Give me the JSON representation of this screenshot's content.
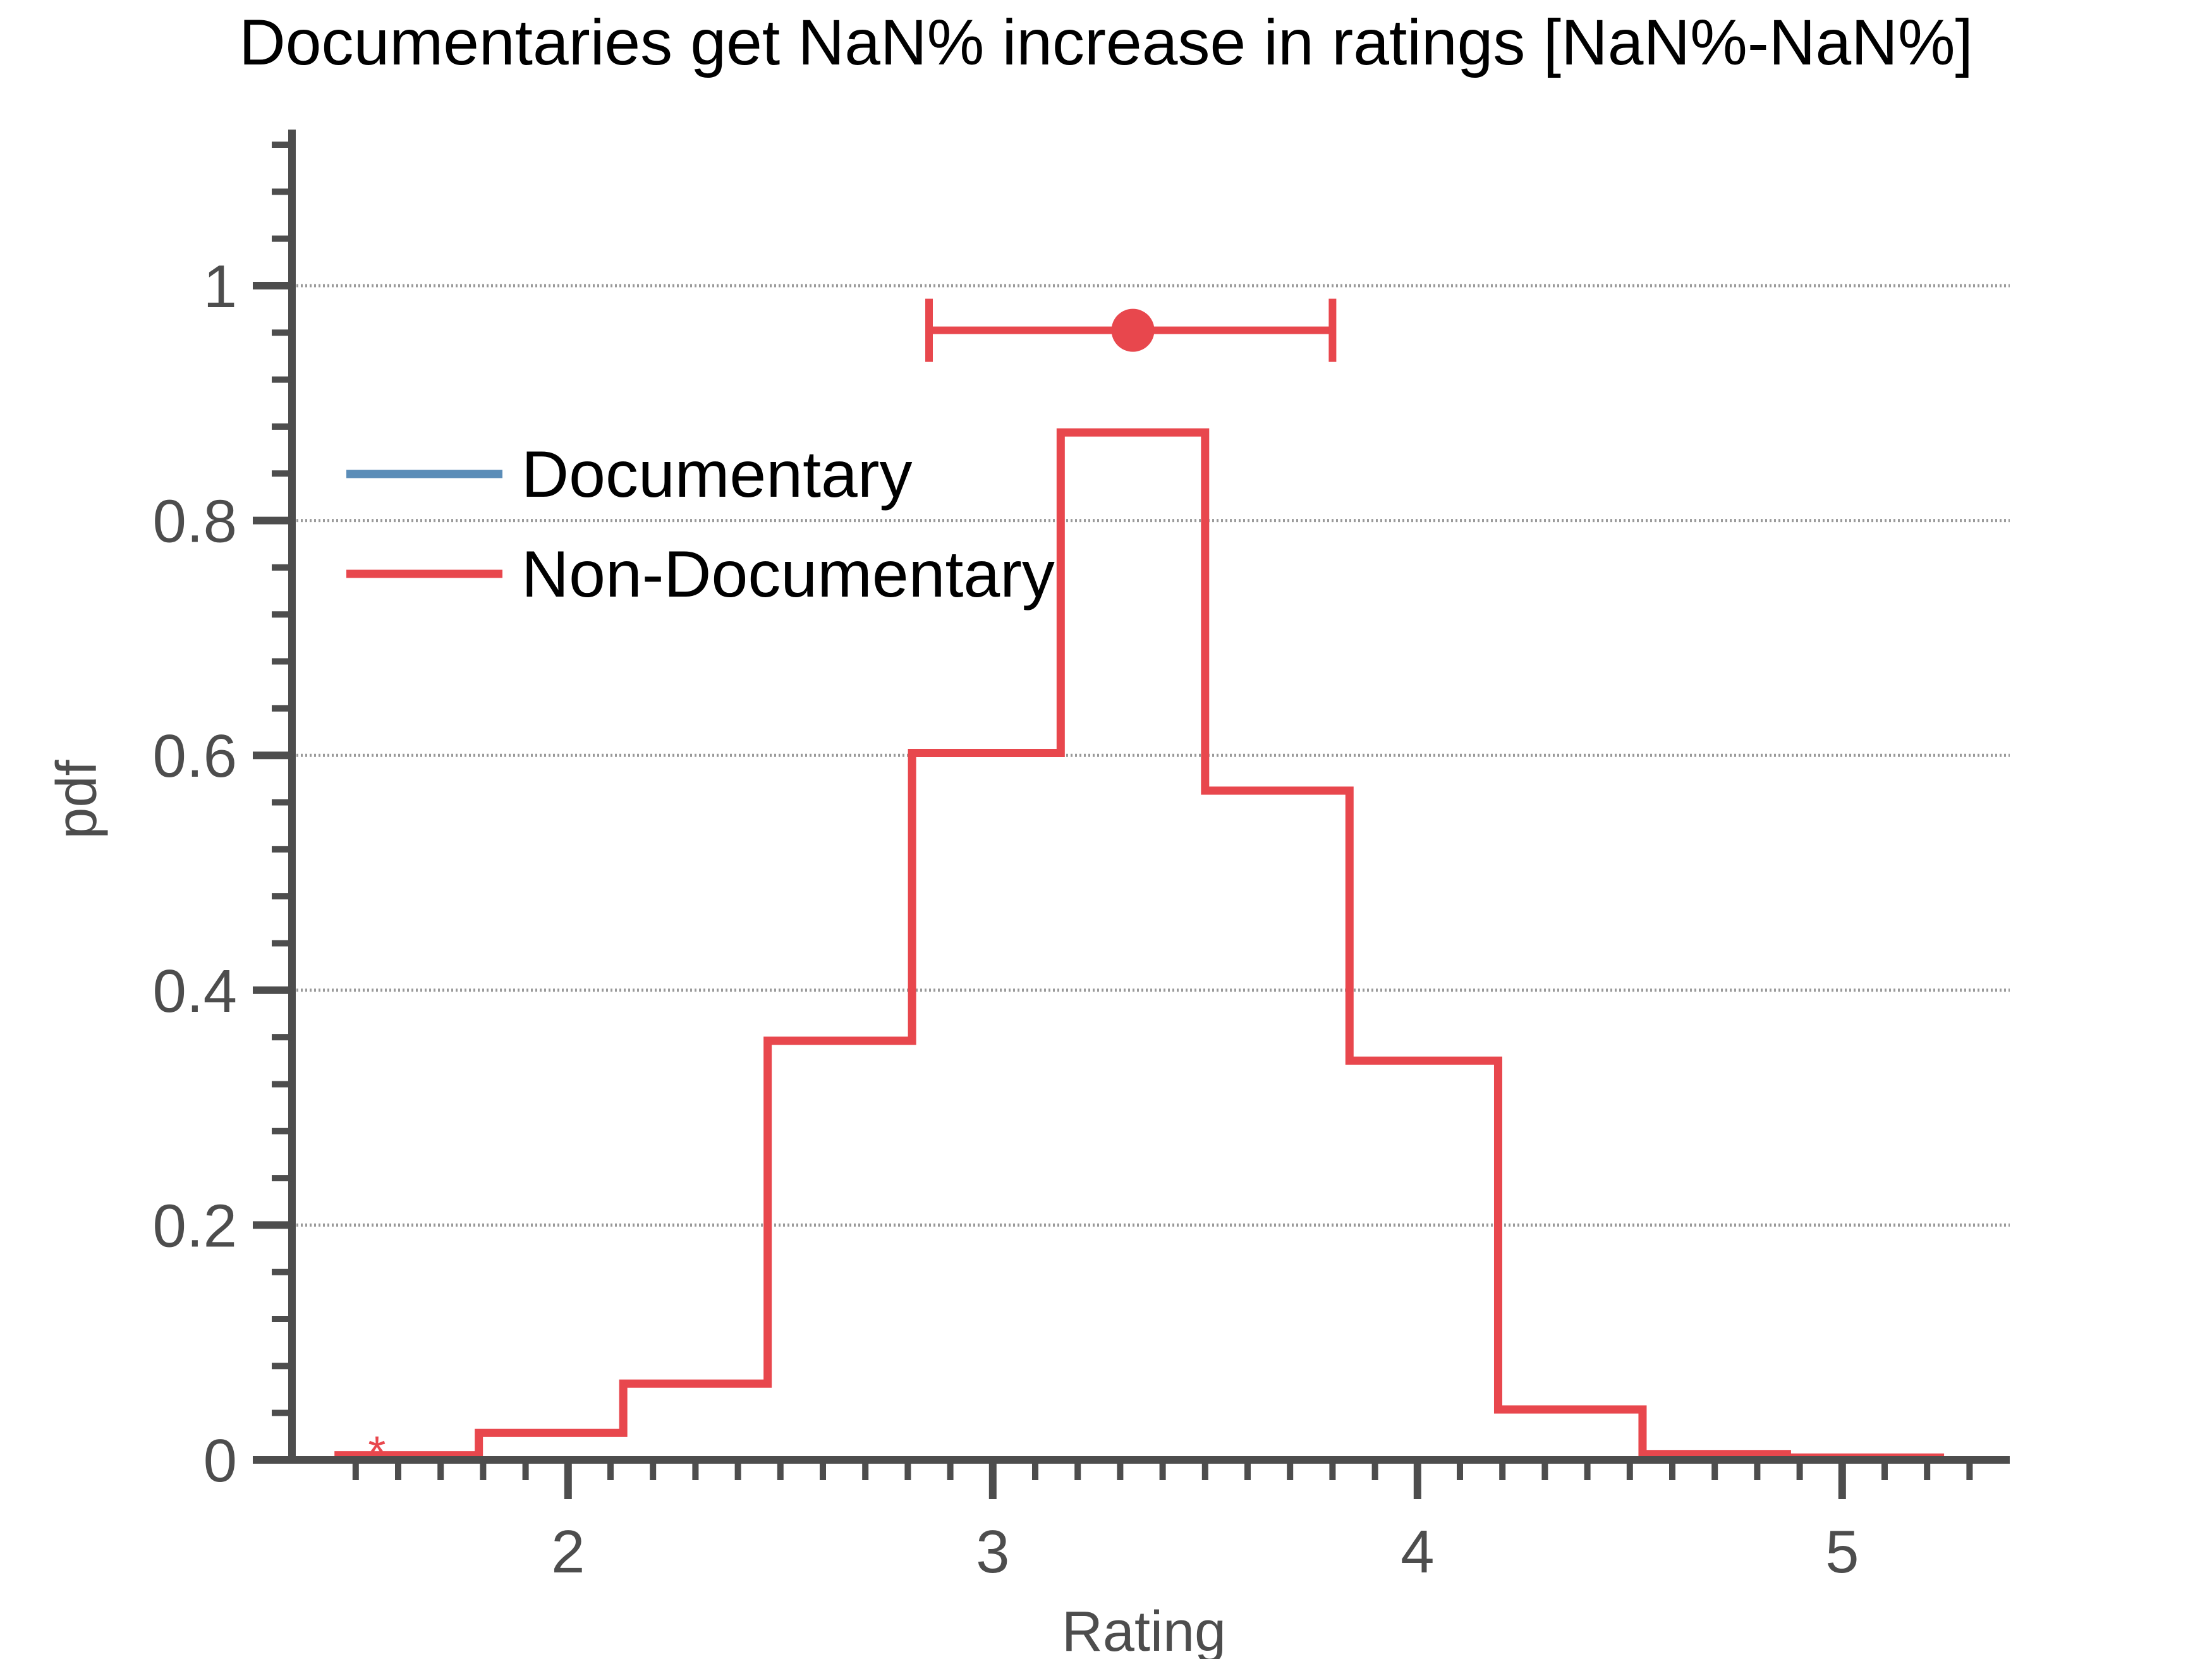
{
  "chart_data": {
    "type": "line",
    "title": "Documentaries get NaN% increase in ratings [NaN%-NaN%]",
    "xlabel": "Rating",
    "ylabel": "pdf",
    "xlim": [
      1.35,
      5.35
    ],
    "ylim": [
      0,
      1.13
    ],
    "xticks": [
      2,
      3,
      4,
      5
    ],
    "xtick_labels": [
      "2",
      "3",
      "4",
      "5"
    ],
    "yticks": [
      0,
      0.2,
      0.4,
      0.6,
      0.8,
      1
    ],
    "ytick_labels": [
      "0",
      "0.2",
      "0.4",
      "0.6",
      "0.8",
      "1"
    ],
    "grid": "horizontal",
    "legend_position": "upper-left",
    "series": [
      {
        "name": "Documentary",
        "color": "#5b8db8",
        "bin_edges": [],
        "values": []
      },
      {
        "name": "Non-Documentary",
        "color": "#e8474d",
        "bin_edges": [
          1.45,
          1.79,
          2.13,
          2.47,
          2.81,
          3.16,
          3.5,
          3.84,
          4.19,
          4.53,
          4.87,
          5.24
        ],
        "values": [
          0.004,
          0.023,
          0.065,
          0.357,
          0.602,
          0.875,
          0.57,
          0.34,
          0.043,
          0.005,
          0.002
        ]
      }
    ],
    "error_bar": {
      "color": "#e8474d",
      "center": 3.33,
      "low": 2.85,
      "high": 3.8,
      "y": 0.962
    },
    "annotations": [
      {
        "text": "*",
        "x": 1.55,
        "y": 0.02,
        "color": "#e8474d"
      }
    ]
  }
}
